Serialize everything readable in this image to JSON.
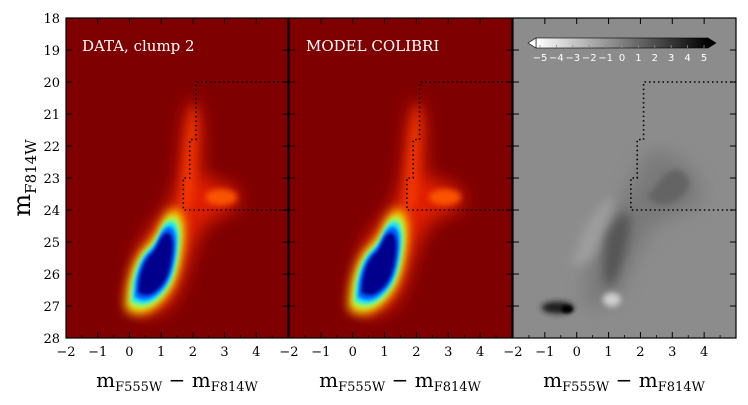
{
  "chart_data": {
    "type": "heatmap",
    "y_axis": {
      "label_main": "m",
      "label_sub": "F814W",
      "range": [
        18,
        28
      ],
      "inverted": true,
      "ticks": [
        "18",
        "19",
        "20",
        "21",
        "22",
        "23",
        "24",
        "25",
        "26",
        "27",
        "28"
      ]
    },
    "x_axis": {
      "label_main_1": "m",
      "label_sub_1": "F555W",
      "label_minus": " − ",
      "label_main_2": "m",
      "label_sub_2": "F814W",
      "range": [
        -2,
        5
      ],
      "ticks": [
        "−2",
        "−1",
        "0",
        "1",
        "2",
        "3",
        "4"
      ]
    },
    "panels": [
      {
        "label": "DATA, clump 2",
        "kind": "density",
        "background": "#7f0000",
        "components": [
          {
            "name": "main_sequence",
            "x": [
              0.3,
              1.5
            ],
            "y": [
              24.2,
              27.0
            ],
            "peak": "high"
          },
          {
            "name": "red_giant_branch",
            "x": [
              1.5,
              2.2
            ],
            "y": [
              20.0,
              24.0
            ],
            "peak": "low"
          },
          {
            "name": "red_clump",
            "x": [
              2.5,
              3.3
            ],
            "y": [
              23.3,
              23.9
            ],
            "peak": "medium"
          }
        ]
      },
      {
        "label": "MODEL COLIBRI",
        "kind": "density",
        "background": "#7f0000",
        "components": [
          {
            "name": "main_sequence",
            "x": [
              0.3,
              1.5
            ],
            "y": [
              24.2,
              27.0
            ],
            "peak": "high"
          },
          {
            "name": "red_giant_branch",
            "x": [
              1.5,
              2.2
            ],
            "y": [
              20.0,
              24.0
            ],
            "peak": "low"
          },
          {
            "name": "red_clump",
            "x": [
              2.5,
              3.3
            ],
            "y": [
              23.3,
              23.9
            ],
            "peak": "medium"
          }
        ]
      },
      {
        "label": "",
        "kind": "residual",
        "background": "#8c8c8c",
        "colorbar": {
          "range": [
            -5,
            5
          ],
          "ticks": [
            "−5",
            "−4",
            "−3",
            "−2",
            "−1",
            "0",
            "1",
            "2",
            "3",
            "4",
            "5"
          ],
          "cmap": "white-to-black"
        }
      }
    ],
    "dotted_region": [
      [
        5.0,
        20.0
      ],
      [
        2.1,
        20.0
      ],
      [
        2.1,
        21.8
      ],
      [
        1.9,
        21.8
      ],
      [
        1.9,
        23.0
      ],
      [
        1.7,
        23.0
      ],
      [
        1.7,
        24.0
      ],
      [
        5.0,
        24.0
      ]
    ],
    "grid": false
  },
  "colors": {
    "jet_dark_red": "#7f0000",
    "residual_grey": "#8c8c8c",
    "frame": "#000000"
  }
}
